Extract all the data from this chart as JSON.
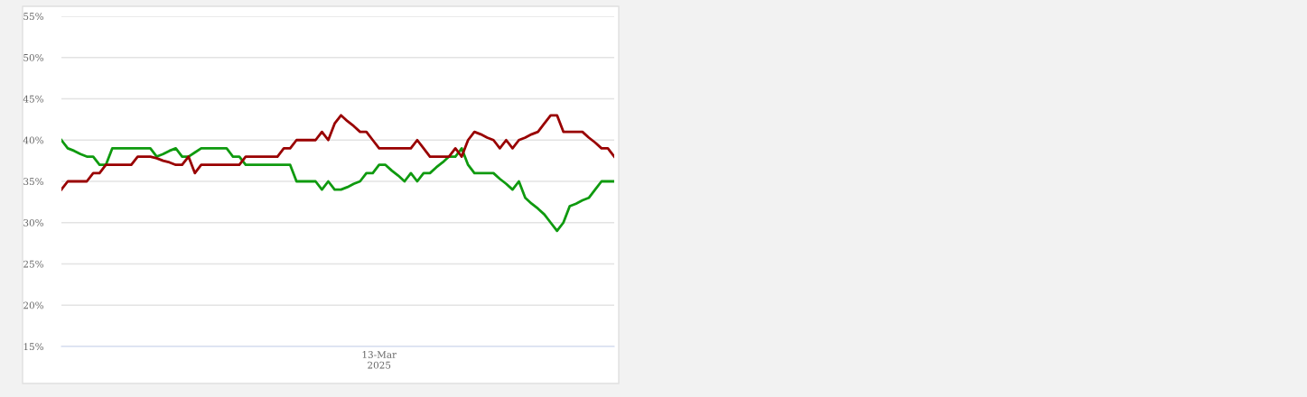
{
  "chart_data": {
    "type": "line",
    "categories": [
      null,
      null,
      null,
      null,
      null,
      null,
      null,
      null,
      null,
      null,
      null,
      null,
      null,
      null,
      null,
      null,
      null,
      null,
      null,
      null,
      null,
      null,
      null,
      null,
      null,
      null,
      null,
      null,
      null,
      null,
      null,
      null,
      null,
      null,
      null,
      null,
      null,
      null,
      null,
      null,
      null,
      null,
      null,
      null,
      null,
      null,
      null,
      null,
      null,
      null,
      "13-Mar\n2025",
      null,
      null,
      null,
      null,
      null,
      null,
      null,
      null,
      null,
      null,
      null,
      null,
      null,
      null,
      null,
      null,
      null,
      null,
      null,
      null,
      null,
      null,
      null,
      null,
      null,
      null,
      null,
      null,
      null,
      null,
      null,
      null,
      null,
      null,
      null,
      null,
      null
    ],
    "ylim": [
      15,
      55
    ],
    "yticks": [
      {
        "value": 15,
        "label": "15%"
      },
      {
        "value": 20,
        "label": "20%"
      },
      {
        "value": 25,
        "label": "25%"
      },
      {
        "value": 30,
        "label": "30%"
      },
      {
        "value": 35,
        "label": "35%"
      },
      {
        "value": 40,
        "label": "40%"
      },
      {
        "value": 45,
        "label": "45%"
      },
      {
        "value": 50,
        "label": "50%"
      },
      {
        "value": 55,
        "label": "55%"
      }
    ],
    "grid": "y",
    "marker": "none",
    "line_style": "solid",
    "series": [
      {
        "color": "#0f9a0f",
        "values": [
          40,
          39,
          38.7,
          38.3,
          38,
          38,
          37,
          37,
          39,
          39,
          39,
          39,
          39,
          39,
          39,
          38,
          38.3,
          38.7,
          39,
          38,
          38,
          38.5,
          39,
          39,
          39,
          39,
          39,
          38,
          38,
          37,
          37,
          37,
          37,
          37,
          37,
          37,
          37,
          35,
          35,
          35,
          35,
          34,
          35,
          34,
          34,
          34.3,
          34.7,
          35,
          36,
          36,
          37,
          37,
          36.3,
          35.7,
          35,
          36,
          35,
          36,
          36,
          36.7,
          37.3,
          38,
          38,
          39,
          37,
          36,
          36,
          36,
          36,
          35.3,
          34.7,
          34,
          35,
          33,
          32.3,
          31.7,
          31,
          30,
          29,
          30,
          32,
          32.3,
          32.7,
          33,
          34,
          35,
          35,
          35
        ]
      },
      {
        "color": "#990000",
        "values": [
          34,
          35,
          35,
          35,
          35,
          36,
          36,
          37,
          37,
          37,
          37,
          37,
          38,
          38,
          38,
          37.8,
          37.5,
          37.3,
          37,
          37,
          38,
          36,
          37,
          37,
          37,
          37,
          37,
          37,
          37,
          38,
          38,
          38,
          38,
          38,
          38,
          39,
          39,
          40,
          40,
          40,
          40,
          41,
          40,
          42,
          43,
          42.3,
          41.7,
          41,
          41,
          40,
          39,
          39,
          39,
          39,
          39,
          39,
          40,
          39,
          38,
          38,
          38,
          38,
          39,
          38,
          40,
          41,
          40.7,
          40.3,
          40,
          39,
          40,
          39,
          40,
          40.3,
          40.7,
          41,
          42,
          43,
          43,
          41,
          41,
          41,
          41,
          40.3,
          39.7,
          39,
          39,
          38
        ]
      }
    ]
  }
}
